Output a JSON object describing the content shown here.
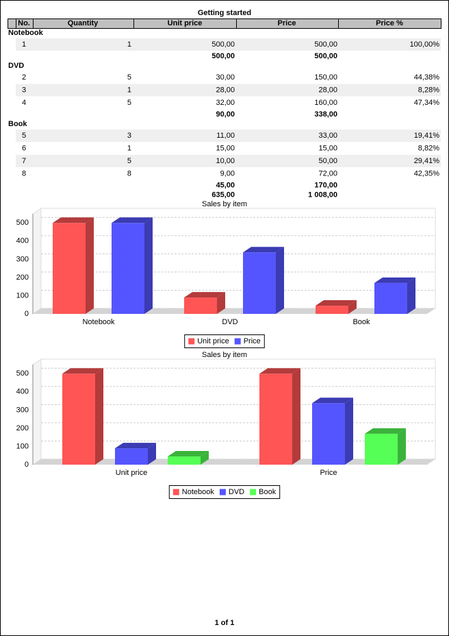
{
  "title": "Getting started",
  "table": {
    "columns": [
      "No.",
      "Quantity",
      "Unit price",
      "Price",
      "Price %"
    ],
    "groups": [
      {
        "name": "Notebook",
        "rows": [
          [
            "1",
            "1",
            "500,00",
            "500,00",
            "100,00%"
          ]
        ],
        "totals": [
          "500,00",
          "500,00"
        ]
      },
      {
        "name": "DVD",
        "rows": [
          [
            "2",
            "5",
            "30,00",
            "150,00",
            "44,38%"
          ],
          [
            "3",
            "1",
            "28,00",
            "28,00",
            "8,28%"
          ],
          [
            "4",
            "5",
            "32,00",
            "160,00",
            "47,34%"
          ]
        ],
        "totals": [
          "90,00",
          "338,00"
        ]
      },
      {
        "name": "Book",
        "rows": [
          [
            "5",
            "3",
            "11,00",
            "33,00",
            "19,41%"
          ],
          [
            "6",
            "1",
            "15,00",
            "15,00",
            "8,82%"
          ],
          [
            "7",
            "5",
            "10,00",
            "50,00",
            "29,41%"
          ],
          [
            "8",
            "8",
            "9,00",
            "72,00",
            "42,35%"
          ]
        ],
        "totals": [
          "45,00",
          "170,00"
        ]
      }
    ],
    "grand_totals": [
      "635,00",
      "1 008,00"
    ]
  },
  "chart_data": [
    {
      "type": "bar",
      "title": "Sales by item",
      "categories": [
        "Notebook",
        "DVD",
        "Book"
      ],
      "series": [
        {
          "name": "Unit price",
          "color": "#ff5555",
          "values": [
            500,
            90,
            45
          ]
        },
        {
          "name": "Price",
          "color": "#5555ff",
          "values": [
            500,
            338,
            170
          ]
        }
      ],
      "ylim": [
        0,
        550
      ],
      "yticks": [
        0,
        100,
        200,
        300,
        400,
        500
      ],
      "grid": true,
      "legend": "bottom"
    },
    {
      "type": "bar",
      "title": "Sales by item",
      "categories": [
        "Unit price",
        "Price"
      ],
      "series": [
        {
          "name": "Notebook",
          "color": "#ff5555",
          "values": [
            500,
            500
          ]
        },
        {
          "name": "DVD",
          "color": "#5555ff",
          "values": [
            90,
            338
          ]
        },
        {
          "name": "Book",
          "color": "#55ff55",
          "values": [
            45,
            170
          ]
        }
      ],
      "ylim": [
        0,
        550
      ],
      "yticks": [
        0,
        100,
        200,
        300,
        400,
        500
      ],
      "grid": true,
      "legend": "bottom"
    }
  ],
  "footer": "1 of 1"
}
